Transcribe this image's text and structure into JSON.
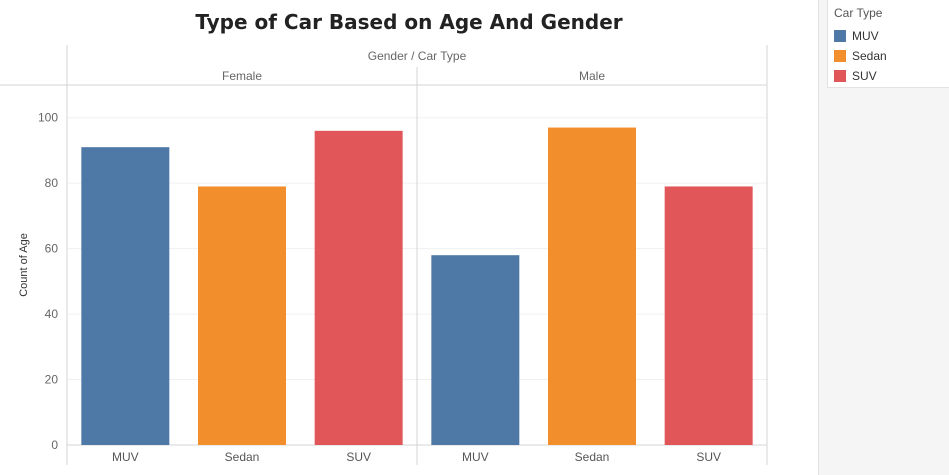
{
  "chart_data": {
    "type": "bar",
    "title": "Type of Car Based on Age And Gender",
    "column_header": "Gender / Car Type",
    "ylabel": "Count of Age",
    "ylim": [
      0,
      110
    ],
    "yticks": [
      0,
      20,
      40,
      60,
      80,
      100
    ],
    "grid": true,
    "legend_position": "right",
    "legend_title": "Car Type",
    "categories": [
      "MUV",
      "Sedan",
      "SUV"
    ],
    "colors": {
      "MUV": "#4e79a7",
      "Sedan": "#f28e2b",
      "SUV": "#e15759"
    },
    "panels": [
      {
        "label": "Female",
        "values": [
          91,
          79,
          96
        ]
      },
      {
        "label": "Male",
        "values": [
          58,
          97,
          79
        ]
      }
    ]
  }
}
